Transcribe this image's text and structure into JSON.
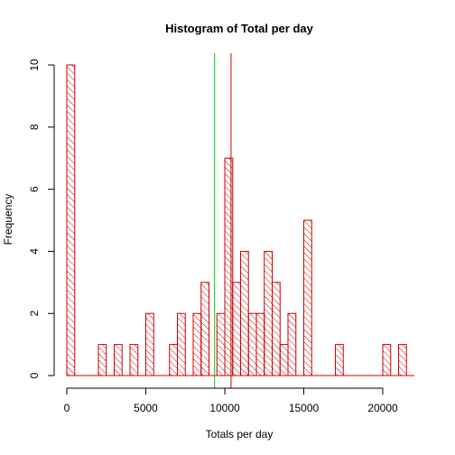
{
  "chart_data": {
    "type": "histogram",
    "title": "Histogram of Total per day",
    "xlabel": "Totals per day",
    "ylabel": "Frequency",
    "bin_width": 500,
    "xlim": [
      0,
      22000
    ],
    "ylim": [
      0,
      10
    ],
    "x_ticks": [
      0,
      5000,
      10000,
      15000,
      20000
    ],
    "y_ticks": [
      0,
      2,
      4,
      6,
      8,
      10
    ],
    "bins": [
      {
        "start": 0,
        "count": 10
      },
      {
        "start": 2000,
        "count": 1
      },
      {
        "start": 3000,
        "count": 1
      },
      {
        "start": 4000,
        "count": 1
      },
      {
        "start": 5000,
        "count": 2
      },
      {
        "start": 6500,
        "count": 1
      },
      {
        "start": 7000,
        "count": 2
      },
      {
        "start": 8000,
        "count": 2
      },
      {
        "start": 8500,
        "count": 3
      },
      {
        "start": 9500,
        "count": 2
      },
      {
        "start": 10000,
        "count": 7
      },
      {
        "start": 10500,
        "count": 3
      },
      {
        "start": 11000,
        "count": 4
      },
      {
        "start": 11500,
        "count": 2
      },
      {
        "start": 12000,
        "count": 2
      },
      {
        "start": 12500,
        "count": 4
      },
      {
        "start": 13000,
        "count": 3
      },
      {
        "start": 13500,
        "count": 1
      },
      {
        "start": 14000,
        "count": 2
      },
      {
        "start": 15000,
        "count": 5
      },
      {
        "start": 17000,
        "count": 1
      },
      {
        "start": 20000,
        "count": 1
      },
      {
        "start": 21000,
        "count": 1
      }
    ],
    "vertical_lines": [
      {
        "value": 9354,
        "color": "#00cc00"
      },
      {
        "value": 10395,
        "color": "#cc0000"
      }
    ],
    "bar_color": "#cc0000",
    "fill": "hatched"
  }
}
